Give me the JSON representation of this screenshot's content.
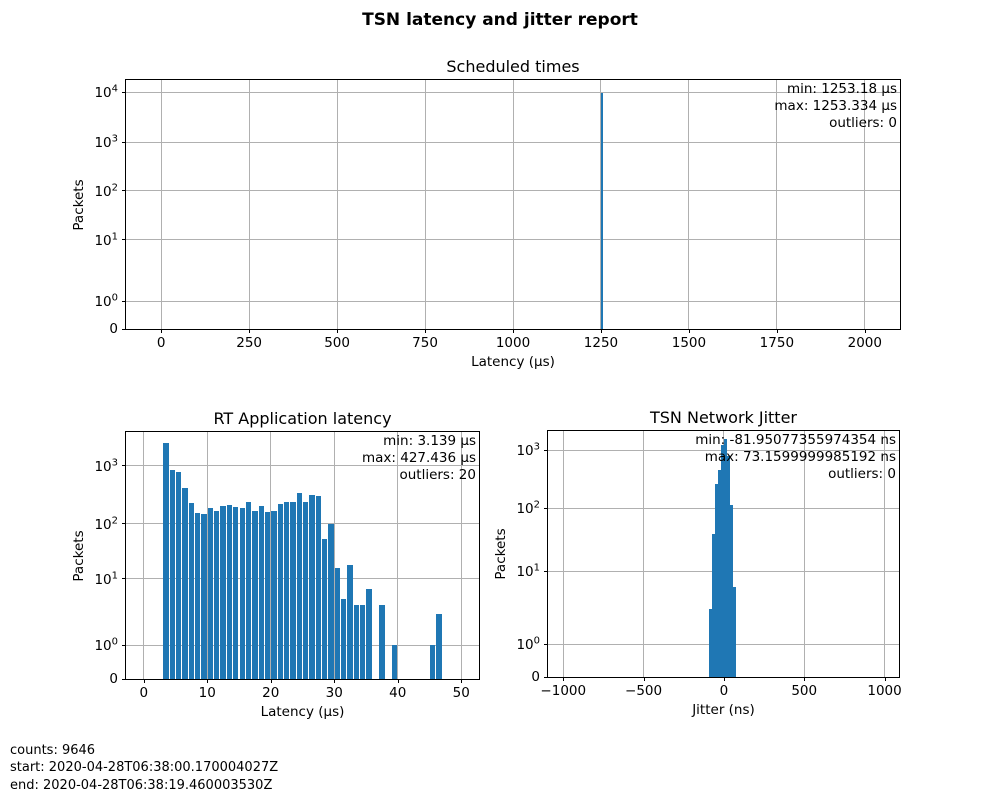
{
  "figure_title": "TSN latency and jitter report",
  "colors": {
    "bar": "#1f77b4",
    "grid": "#b0b0b0",
    "spine": "#000000"
  },
  "footer": {
    "counts": "counts: 9646",
    "start": "start: 2020-04-28T06:38:00.170004027Z",
    "end": "end: 2020-04-28T06:38:19.460003530Z"
  },
  "chart_data": [
    {
      "type": "bar",
      "title": "Scheduled times",
      "xlabel": "Latency (μs)",
      "ylabel": "Packets",
      "annotation": [
        "min: 1253.18 μs",
        "max: 1253.334 μs",
        "outliers: 0"
      ],
      "yscale": "symlog",
      "grid": true,
      "legend": "none",
      "xlim": [
        -100,
        2100
      ],
      "x_ticks": [
        0,
        250,
        500,
        750,
        1000,
        1250,
        1500,
        1750,
        2000
      ],
      "y_ticks": [
        0,
        1,
        10,
        100,
        1000,
        10000
      ],
      "y_anchor_fracs": [
        [
          0,
          0
        ],
        [
          1,
          0.111
        ],
        [
          10,
          0.359
        ],
        [
          100,
          0.556
        ],
        [
          1000,
          0.75
        ],
        [
          10000,
          0.95
        ]
      ],
      "bins": {
        "start": 1250.5,
        "width": 6
      },
      "values": [
        9646
      ]
    },
    {
      "type": "bar",
      "title": "RT Application latency",
      "xlabel": "Latency (μs)",
      "ylabel": "Packets",
      "annotation": [
        "min: 3.139 μs",
        "max: 427.436 μs",
        "outliers: 20"
      ],
      "yscale": "symlog",
      "grid": true,
      "legend": "none",
      "xlim": [
        -2.8,
        52.8
      ],
      "x_ticks": [
        0,
        10,
        20,
        30,
        40,
        50
      ],
      "y_ticks": [
        0,
        1,
        10,
        100,
        1000
      ],
      "y_anchor_fracs": [
        [
          0,
          0
        ],
        [
          1,
          0.1365
        ],
        [
          10,
          0.4056
        ],
        [
          100,
          0.6293
        ],
        [
          1000,
          0.8635
        ]
      ],
      "bins": {
        "start": 3,
        "width": 1
      },
      "values": [
        2500,
        830,
        790,
        420,
        230,
        150,
        145,
        185,
        165,
        200,
        207,
        197,
        186,
        238,
        168,
        198,
        158,
        162,
        222,
        240,
        235,
        333,
        232,
        318,
        300,
        52,
        100,
        16,
        5,
        18,
        4,
        4,
        7,
        0,
        4,
        0,
        1,
        0,
        0,
        0,
        0,
        0,
        1,
        3
      ]
    },
    {
      "type": "bar",
      "title": "TSN Network Jitter",
      "xlabel": "Jitter (ns)",
      "ylabel": "Packets",
      "annotation": [
        "min: -81.95077355974354 ns",
        "max: 73.1599999985192 ns",
        "outliers: 0"
      ],
      "yscale": "symlog",
      "grid": true,
      "legend": "none",
      "xlim": [
        -1095,
        1090
      ],
      "x_ticks": [
        -1000,
        -500,
        0,
        500,
        1000
      ],
      "y_ticks": [
        0,
        1,
        10,
        100,
        1000
      ],
      "y_anchor_fracs": [
        [
          0,
          0
        ],
        [
          1,
          0.134
        ],
        [
          10,
          0.4295
        ],
        [
          100,
          0.685
        ],
        [
          1000,
          0.922
        ]
      ],
      "bins": {
        "start": -91.2,
        "width": 18.4
      },
      "values": [
        3,
        40,
        265,
        450,
        1230,
        1550,
        800,
        115,
        6
      ]
    }
  ]
}
